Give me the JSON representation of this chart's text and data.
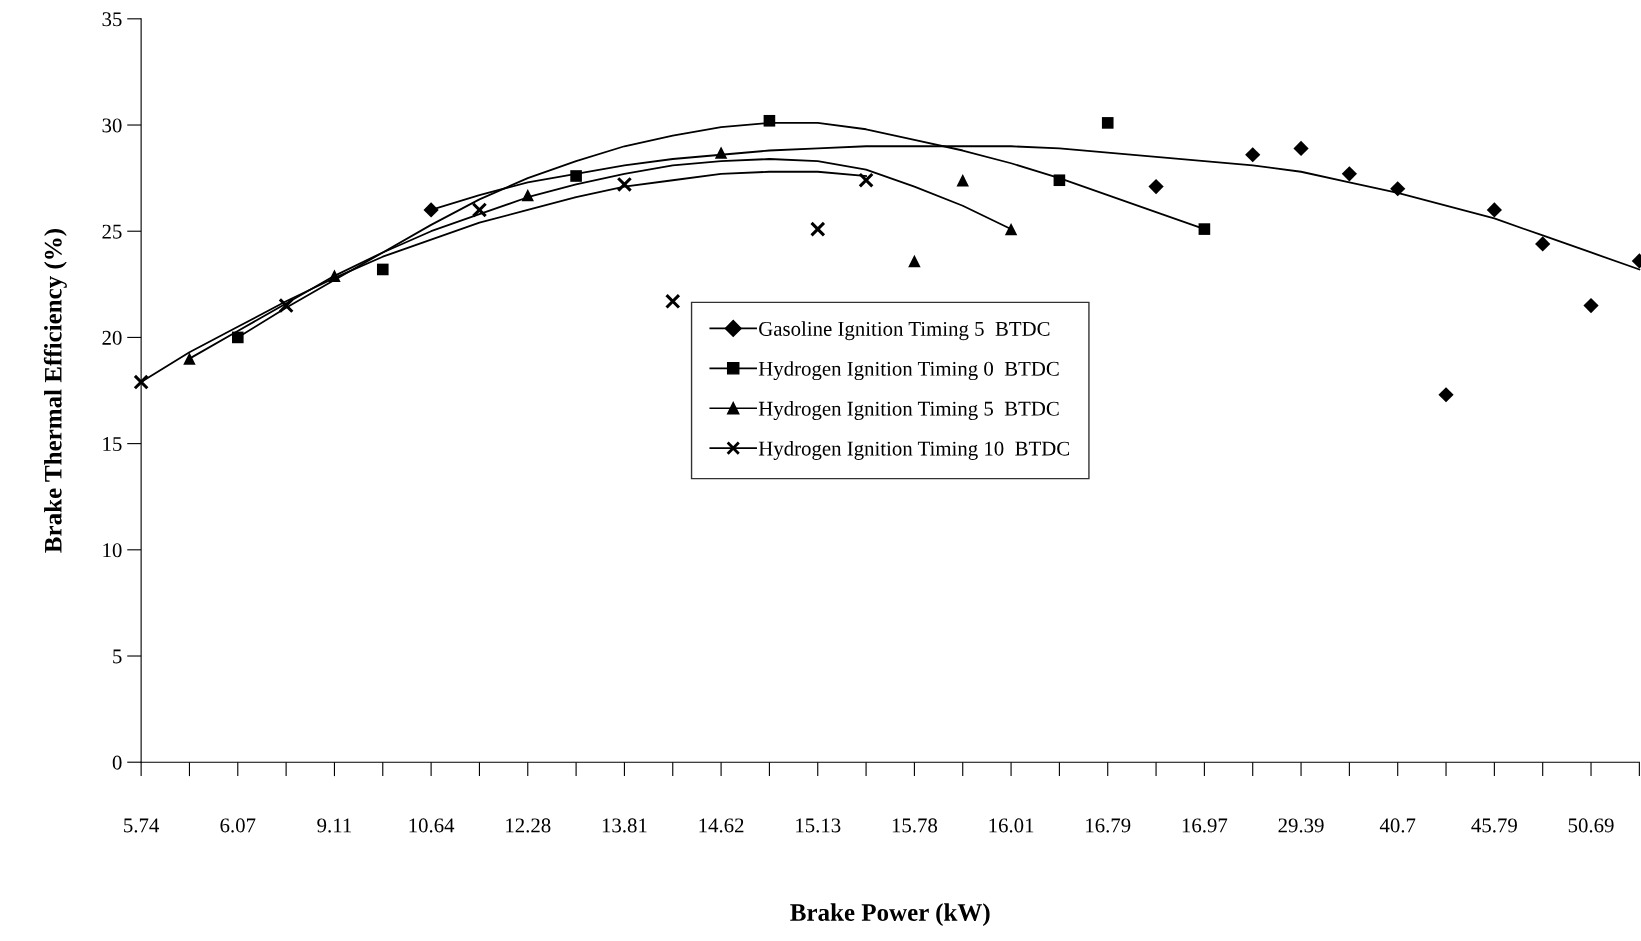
{
  "chart_data": {
    "type": "scatter",
    "xlabel": "Brake Power (kW)",
    "ylabel": "Brake Thermal Efficiency (%)",
    "categories": [
      "5.74",
      null,
      "6.07",
      null,
      "9.11",
      null,
      "10.64",
      null,
      "12.28",
      null,
      "13.81",
      null,
      "14.62",
      null,
      "15.13",
      null,
      "15.78",
      null,
      "16.01",
      null,
      "16.79",
      null,
      "16.97",
      null,
      "29.39",
      null,
      "40.7",
      null,
      "45.79",
      null,
      "50.69",
      null
    ],
    "ylim": [
      0,
      35
    ],
    "yticks": [
      0,
      5,
      10,
      15,
      20,
      25,
      30,
      35
    ],
    "grid": false,
    "legend": "center",
    "series": [
      {
        "name": "Gasoline Ignition Timing 5  BTDC",
        "marker": "diamond",
        "color": "#000000",
        "values": [
          null,
          null,
          null,
          null,
          null,
          null,
          26.0,
          null,
          null,
          null,
          null,
          null,
          null,
          null,
          null,
          null,
          null,
          null,
          null,
          null,
          null,
          27.1,
          null,
          28.6,
          28.9,
          27.7,
          27.0,
          17.3,
          26.0,
          24.4,
          21.5,
          23.6
        ]
      },
      {
        "name": "Hydrogen Ignition Timing 0  BTDC",
        "marker": "square",
        "color": "#000000",
        "values": [
          null,
          null,
          20.0,
          null,
          null,
          23.2,
          null,
          null,
          null,
          27.6,
          null,
          null,
          null,
          30.2,
          null,
          null,
          null,
          null,
          null,
          27.4,
          30.1,
          null,
          25.1,
          null,
          null,
          null,
          null,
          null,
          null,
          null,
          null,
          null
        ]
      },
      {
        "name": "Hydrogen Ignition Timing 5  BTDC",
        "marker": "triangle",
        "color": "#000000",
        "values": [
          null,
          19.0,
          null,
          null,
          22.9,
          null,
          null,
          null,
          26.7,
          null,
          null,
          null,
          28.7,
          null,
          null,
          null,
          23.6,
          27.4,
          25.1,
          null,
          null,
          null,
          null,
          null,
          null,
          null,
          null,
          null,
          null,
          null,
          null,
          null
        ]
      },
      {
        "name": "Hydrogen Ignition Timing 10  BTDC",
        "marker": "cross",
        "color": "#000000",
        "values": [
          17.9,
          null,
          null,
          21.5,
          null,
          null,
          null,
          26.0,
          null,
          null,
          27.2,
          21.7,
          null,
          null,
          25.1,
          27.4,
          null,
          null,
          null,
          null,
          null,
          null,
          null,
          null,
          null,
          null,
          null,
          null,
          null,
          null,
          null,
          null
        ]
      },
      {
        "type": "line",
        "color": "#000000",
        "values": [
          null,
          null,
          null,
          null,
          null,
          null,
          26.0,
          26.7,
          27.3,
          27.7,
          28.1,
          28.4,
          28.6,
          28.8,
          28.9,
          29.0,
          29.0,
          29.0,
          29.0,
          28.9,
          28.7,
          28.5,
          28.3,
          28.1,
          27.8,
          27.3,
          26.8,
          26.2,
          25.6,
          24.8,
          24.0,
          23.2
        ]
      },
      {
        "type": "line",
        "color": "#000000",
        "values": [
          null,
          null,
          20.0,
          21.4,
          22.7,
          24.0,
          25.3,
          26.5,
          27.5,
          28.3,
          29.0,
          29.5,
          29.9,
          30.1,
          30.1,
          29.8,
          29.3,
          28.8,
          28.2,
          27.5,
          26.7,
          25.9,
          25.1,
          null,
          null,
          null,
          null,
          null,
          null,
          null,
          null,
          null
        ]
      },
      {
        "type": "line",
        "color": "#000000",
        "values": [
          null,
          19.0,
          20.3,
          21.6,
          22.9,
          24.0,
          25.0,
          25.8,
          26.6,
          27.2,
          27.7,
          28.1,
          28.3,
          28.4,
          28.3,
          27.9,
          27.1,
          26.2,
          25.1,
          null,
          null,
          null,
          null,
          null,
          null,
          null,
          null,
          null,
          null,
          null,
          null,
          null
        ]
      },
      {
        "type": "line",
        "color": "#000000",
        "values": [
          17.9,
          19.3,
          20.5,
          21.7,
          22.8,
          23.8,
          24.6,
          25.4,
          26.0,
          26.6,
          27.1,
          27.4,
          27.7,
          27.8,
          27.8,
          27.6,
          null,
          null,
          null,
          null,
          null,
          null,
          null,
          null,
          null,
          null,
          null,
          null,
          null,
          null,
          null,
          null
        ]
      }
    ]
  }
}
